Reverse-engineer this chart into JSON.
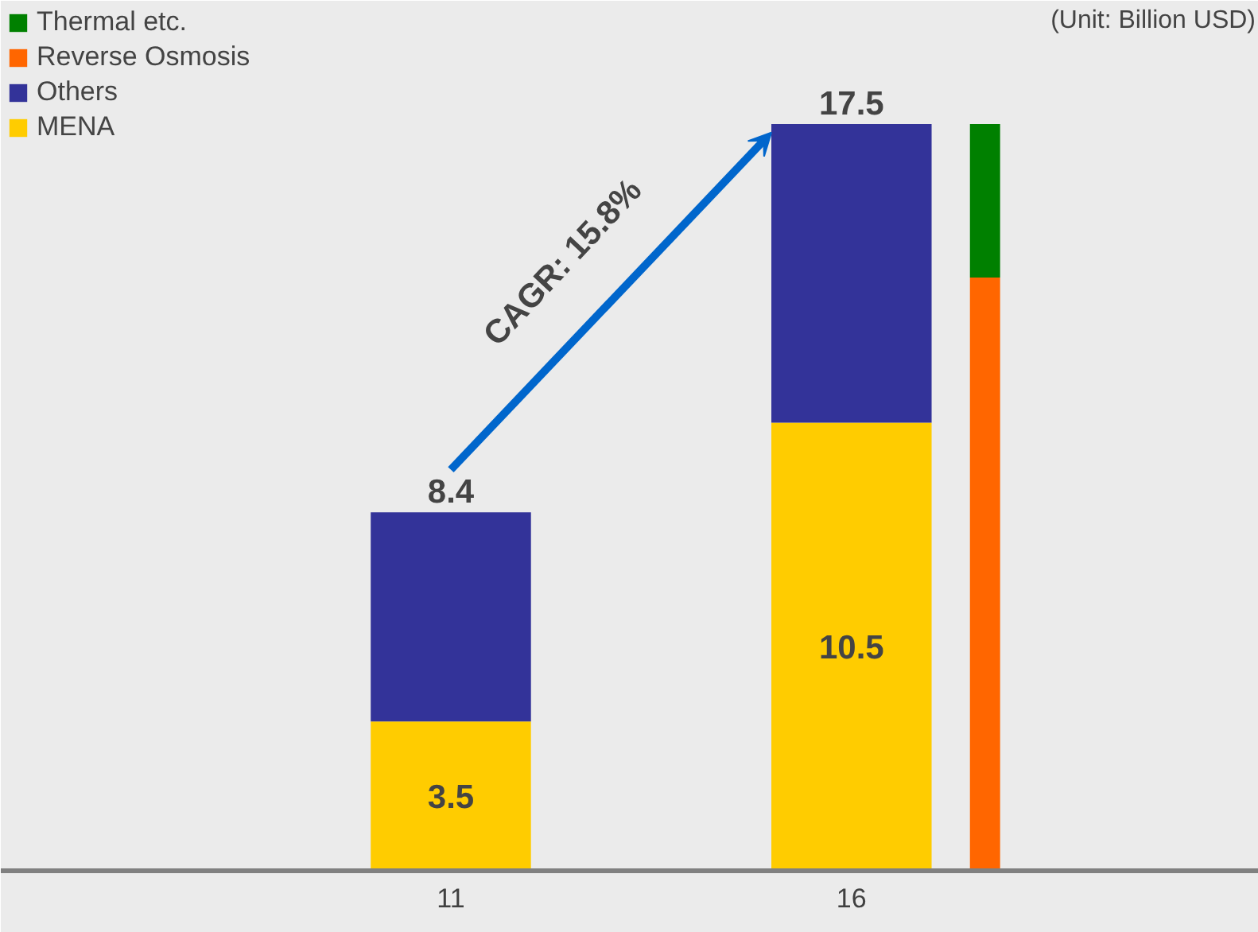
{
  "chart_data": {
    "type": "bar",
    "stacked": true,
    "categories": [
      "11",
      null,
      null,
      "16",
      null
    ],
    "series": [
      {
        "name": "MENA",
        "color": "#ffcc00",
        "values": [
          3.5,
          null,
          null,
          10.5,
          null
        ],
        "value_labels": [
          "3.5",
          null,
          null,
          "10.5",
          null
        ]
      },
      {
        "name": "Others",
        "color": "#333399",
        "values": [
          4.9,
          null,
          null,
          7.0,
          null
        ]
      },
      {
        "name": "Reverse Osmosis",
        "color": "#ff6600",
        "values": [
          null,
          null,
          null,
          null,
          13.9
        ]
      },
      {
        "name": "Thermal etc.",
        "color": "#008000",
        "values": [
          null,
          null,
          null,
          null,
          3.6
        ]
      }
    ],
    "totals": [
      "8.4",
      null,
      null,
      "17.5",
      null
    ],
    "annotations": [
      "(Unit: Billion USD)",
      "CAGR: 15.8%"
    ],
    "legend": "top left",
    "tick_labels": "x",
    "grid": false
  }
}
